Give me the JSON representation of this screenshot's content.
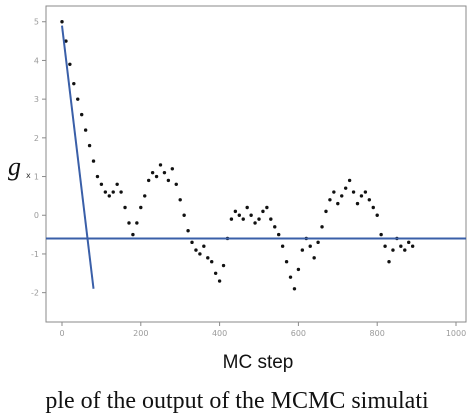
{
  "chart_data": {
    "type": "scatter",
    "xlabel": "MC step",
    "ylabel": "g",
    "ylabel_subscript": "x",
    "xlim": [
      0,
      1000
    ],
    "ylim": [
      -2.5,
      5.2
    ],
    "x_ticks": [
      0,
      200,
      400,
      600,
      800,
      1000
    ],
    "x_tick_labels": [
      "0",
      "200",
      "400",
      "600",
      "800",
      "1000"
    ],
    "y_ticks": [
      -2,
      -1,
      0,
      1,
      2,
      3,
      4,
      5
    ],
    "y_tick_labels": [
      "-2",
      "-1",
      "0",
      "1",
      "2",
      "3",
      "4",
      "5"
    ],
    "grid": false,
    "legend": "none",
    "series": [
      {
        "marker": "dot",
        "color": "#111111",
        "points_xy": [
          [
            0,
            5.0
          ],
          [
            10,
            4.5
          ],
          [
            20,
            3.9
          ],
          [
            30,
            3.4
          ],
          [
            40,
            3.0
          ],
          [
            50,
            2.6
          ],
          [
            60,
            2.2
          ],
          [
            70,
            1.8
          ],
          [
            80,
            1.4
          ],
          [
            90,
            1.0
          ],
          [
            100,
            0.8
          ],
          [
            110,
            0.6
          ],
          [
            120,
            0.5
          ],
          [
            130,
            0.6
          ],
          [
            140,
            0.8
          ],
          [
            150,
            0.6
          ],
          [
            160,
            0.2
          ],
          [
            170,
            -0.2
          ],
          [
            180,
            -0.5
          ],
          [
            190,
            -0.2
          ],
          [
            200,
            0.2
          ],
          [
            210,
            0.5
          ],
          [
            220,
            0.9
          ],
          [
            230,
            1.1
          ],
          [
            240,
            1.0
          ],
          [
            250,
            1.3
          ],
          [
            260,
            1.1
          ],
          [
            270,
            0.9
          ],
          [
            280,
            1.2
          ],
          [
            290,
            0.8
          ],
          [
            300,
            0.4
          ],
          [
            310,
            0.0
          ],
          [
            320,
            -0.4
          ],
          [
            330,
            -0.7
          ],
          [
            340,
            -0.9
          ],
          [
            350,
            -1.0
          ],
          [
            360,
            -0.8
          ],
          [
            370,
            -1.1
          ],
          [
            380,
            -1.2
          ],
          [
            390,
            -1.5
          ],
          [
            400,
            -1.7
          ],
          [
            410,
            -1.3
          ],
          [
            420,
            -0.6
          ],
          [
            430,
            -0.1
          ],
          [
            440,
            0.1
          ],
          [
            450,
            0.0
          ],
          [
            460,
            -0.1
          ],
          [
            470,
            0.2
          ],
          [
            480,
            0.0
          ],
          [
            490,
            -0.2
          ],
          [
            500,
            -0.1
          ],
          [
            510,
            0.1
          ],
          [
            520,
            0.2
          ],
          [
            530,
            -0.1
          ],
          [
            540,
            -0.3
          ],
          [
            550,
            -0.5
          ],
          [
            560,
            -0.8
          ],
          [
            570,
            -1.2
          ],
          [
            580,
            -1.6
          ],
          [
            590,
            -1.9
          ],
          [
            600,
            -1.4
          ],
          [
            610,
            -0.9
          ],
          [
            620,
            -0.6
          ],
          [
            630,
            -0.8
          ],
          [
            640,
            -1.1
          ],
          [
            650,
            -0.7
          ],
          [
            660,
            -0.3
          ],
          [
            670,
            0.1
          ],
          [
            680,
            0.4
          ],
          [
            690,
            0.6
          ],
          [
            700,
            0.3
          ],
          [
            710,
            0.5
          ],
          [
            720,
            0.7
          ],
          [
            730,
            0.9
          ],
          [
            740,
            0.6
          ],
          [
            750,
            0.3
          ],
          [
            760,
            0.5
          ],
          [
            770,
            0.6
          ],
          [
            780,
            0.4
          ],
          [
            790,
            0.2
          ],
          [
            800,
            0.0
          ],
          [
            810,
            -0.5
          ],
          [
            820,
            -0.8
          ],
          [
            830,
            -1.2
          ],
          [
            840,
            -0.9
          ],
          [
            850,
            -0.6
          ],
          [
            860,
            -0.8
          ],
          [
            870,
            -0.9
          ],
          [
            880,
            -0.7
          ],
          [
            890,
            -0.8
          ]
        ]
      }
    ],
    "fit_lines": [
      {
        "kind": "decline",
        "color": "#3a5fa8",
        "from": [
          0,
          4.9
        ],
        "to": [
          80,
          -1.9
        ]
      },
      {
        "kind": "baseline",
        "color": "#3a5fa8",
        "y": -0.6
      }
    ]
  },
  "caption_fragment": "ple of the output of the MCMC simulati"
}
